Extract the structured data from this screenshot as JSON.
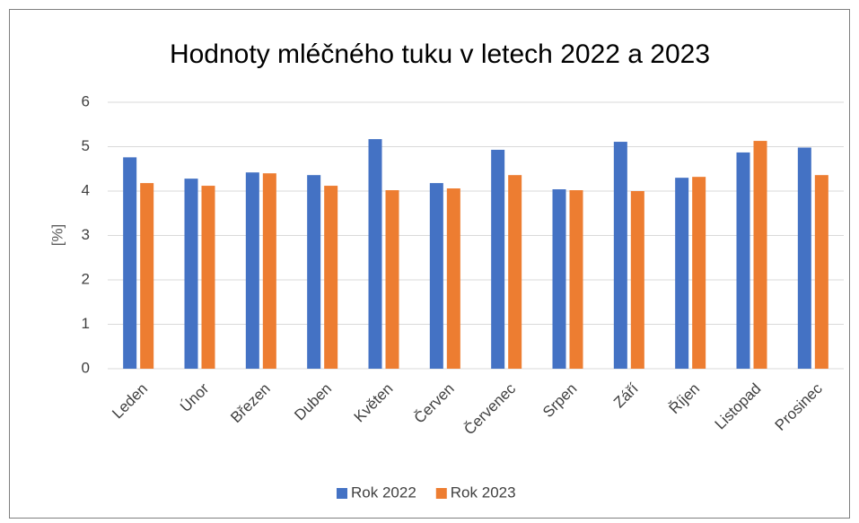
{
  "chart_data": {
    "type": "bar",
    "title": "Hodnoty mléčného tuku v letech 2022 a 2023",
    "y_label": "[%]",
    "categories": [
      "Leden",
      "Únor",
      "Březen",
      "Duben",
      "Květen",
      "Červen",
      "Červenec",
      "Srpen",
      "Září",
      "Říjen",
      "Listopad",
      "Prosinec"
    ],
    "series": [
      {
        "name": "Rok 2022",
        "color": "#4472c4",
        "values": [
          4.76,
          4.28,
          4.42,
          4.36,
          5.17,
          4.18,
          4.93,
          4.04,
          5.11,
          4.3,
          4.87,
          4.98
        ]
      },
      {
        "name": "Rok 2023",
        "color": "#ed7d31",
        "values": [
          4.18,
          4.12,
          4.4,
          4.12,
          4.02,
          4.06,
          4.36,
          4.02,
          4.0,
          4.32,
          5.13,
          4.36
        ]
      }
    ],
    "ylim": [
      0,
      6
    ],
    "yticks": [
      0,
      1,
      2,
      3,
      4,
      5,
      6
    ],
    "grid": true,
    "legend": "bottom"
  }
}
